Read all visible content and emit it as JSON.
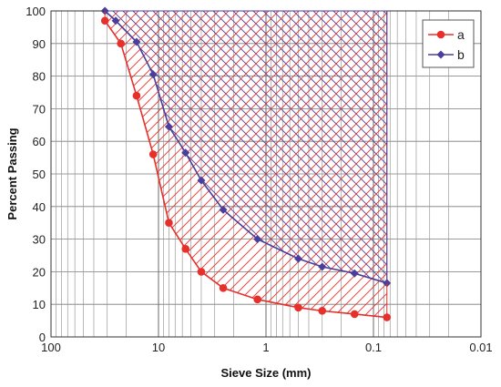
{
  "chart_data": {
    "type": "line",
    "xlabel": "Sieve Size (mm)",
    "ylabel": "Percent Passing",
    "x_scale": "log",
    "x_reversed": true,
    "xlim": [
      100,
      0.01
    ],
    "ylim": [
      0,
      100
    ],
    "x_ticks": [
      {
        "value": 100,
        "label": "100"
      },
      {
        "value": 10,
        "label": "10"
      },
      {
        "value": 1,
        "label": "1"
      },
      {
        "value": 0.1,
        "label": "0.1"
      },
      {
        "value": 0.01,
        "label": "0.01"
      }
    ],
    "y_ticks": [
      {
        "value": 0,
        "label": "0"
      },
      {
        "value": 10,
        "label": "10"
      },
      {
        "value": 20,
        "label": "20"
      },
      {
        "value": 30,
        "label": "30"
      },
      {
        "value": 40,
        "label": "40"
      },
      {
        "value": 50,
        "label": "50"
      },
      {
        "value": 60,
        "label": "60"
      },
      {
        "value": 70,
        "label": "70"
      },
      {
        "value": 80,
        "label": "80"
      },
      {
        "value": 90,
        "label": "90"
      },
      {
        "value": 100,
        "label": "100"
      }
    ],
    "grid": true,
    "legend": {
      "position": "top-right"
    },
    "series": [
      {
        "name": "a",
        "color": "#e8302a",
        "marker": "circle",
        "points": [
          {
            "x": 31.5,
            "y": 97
          },
          {
            "x": 22.4,
            "y": 90
          },
          {
            "x": 16,
            "y": 74
          },
          {
            "x": 11.2,
            "y": 56
          },
          {
            "x": 8,
            "y": 35
          },
          {
            "x": 5.6,
            "y": 27
          },
          {
            "x": 4,
            "y": 20
          },
          {
            "x": 2.5,
            "y": 15
          },
          {
            "x": 1.2,
            "y": 11.5
          },
          {
            "x": 0.5,
            "y": 9
          },
          {
            "x": 0.3,
            "y": 8
          },
          {
            "x": 0.15,
            "y": 7
          },
          {
            "x": 0.075,
            "y": 6
          }
        ]
      },
      {
        "name": "b",
        "color": "#4a3f9a",
        "marker": "diamond",
        "points": [
          {
            "x": 31.5,
            "y": 100
          },
          {
            "x": 25,
            "y": 97
          },
          {
            "x": 16,
            "y": 90.5
          },
          {
            "x": 11.2,
            "y": 80.5
          },
          {
            "x": 8,
            "y": 64.5
          },
          {
            "x": 5.6,
            "y": 56.5
          },
          {
            "x": 4,
            "y": 48
          },
          {
            "x": 2.5,
            "y": 39
          },
          {
            "x": 1.2,
            "y": 30
          },
          {
            "x": 0.5,
            "y": 24
          },
          {
            "x": 0.3,
            "y": 21.5
          },
          {
            "x": 0.15,
            "y": 19.5
          },
          {
            "x": 0.075,
            "y": 16.5
          }
        ]
      }
    ]
  }
}
